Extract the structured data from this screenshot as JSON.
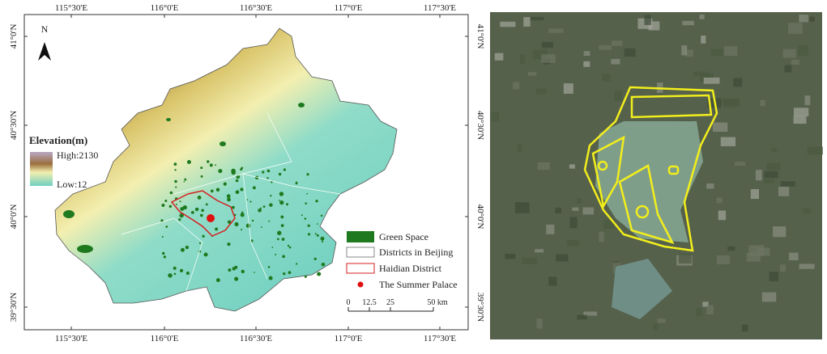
{
  "map": {
    "lon_labels": [
      "115°30'E",
      "116°0'E",
      "116°30'E",
      "117°0'E",
      "117°30'E"
    ],
    "lat_labels": [
      "41°0'N",
      "40°30'N",
      "40°0'N",
      "39°30'N"
    ],
    "north": "N",
    "elevation": {
      "title": "Elevation(m)",
      "high": "High:2130",
      "low": "Low:12"
    },
    "legend": [
      "Green Space",
      "Districts in Beijing",
      "Haidian District",
      "The Summer Palace"
    ],
    "scale": [
      "0",
      "12.5",
      "25",
      "50 km"
    ]
  }
}
